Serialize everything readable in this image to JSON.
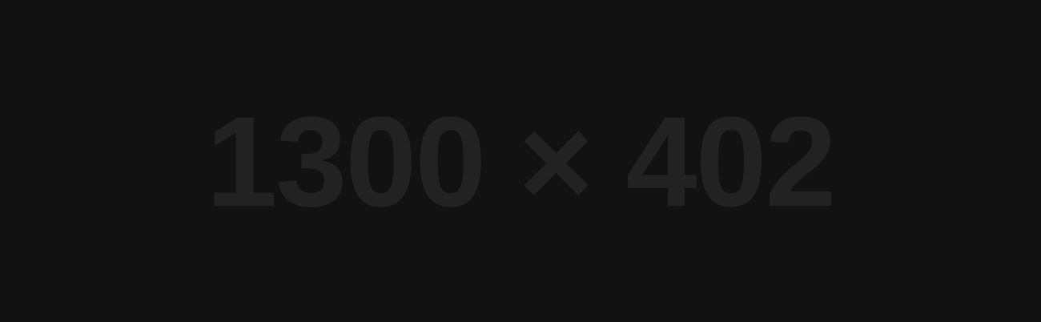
{
  "placeholder": {
    "label": "1300 × 402",
    "background_color": "#121212",
    "text_color": "#222222"
  }
}
